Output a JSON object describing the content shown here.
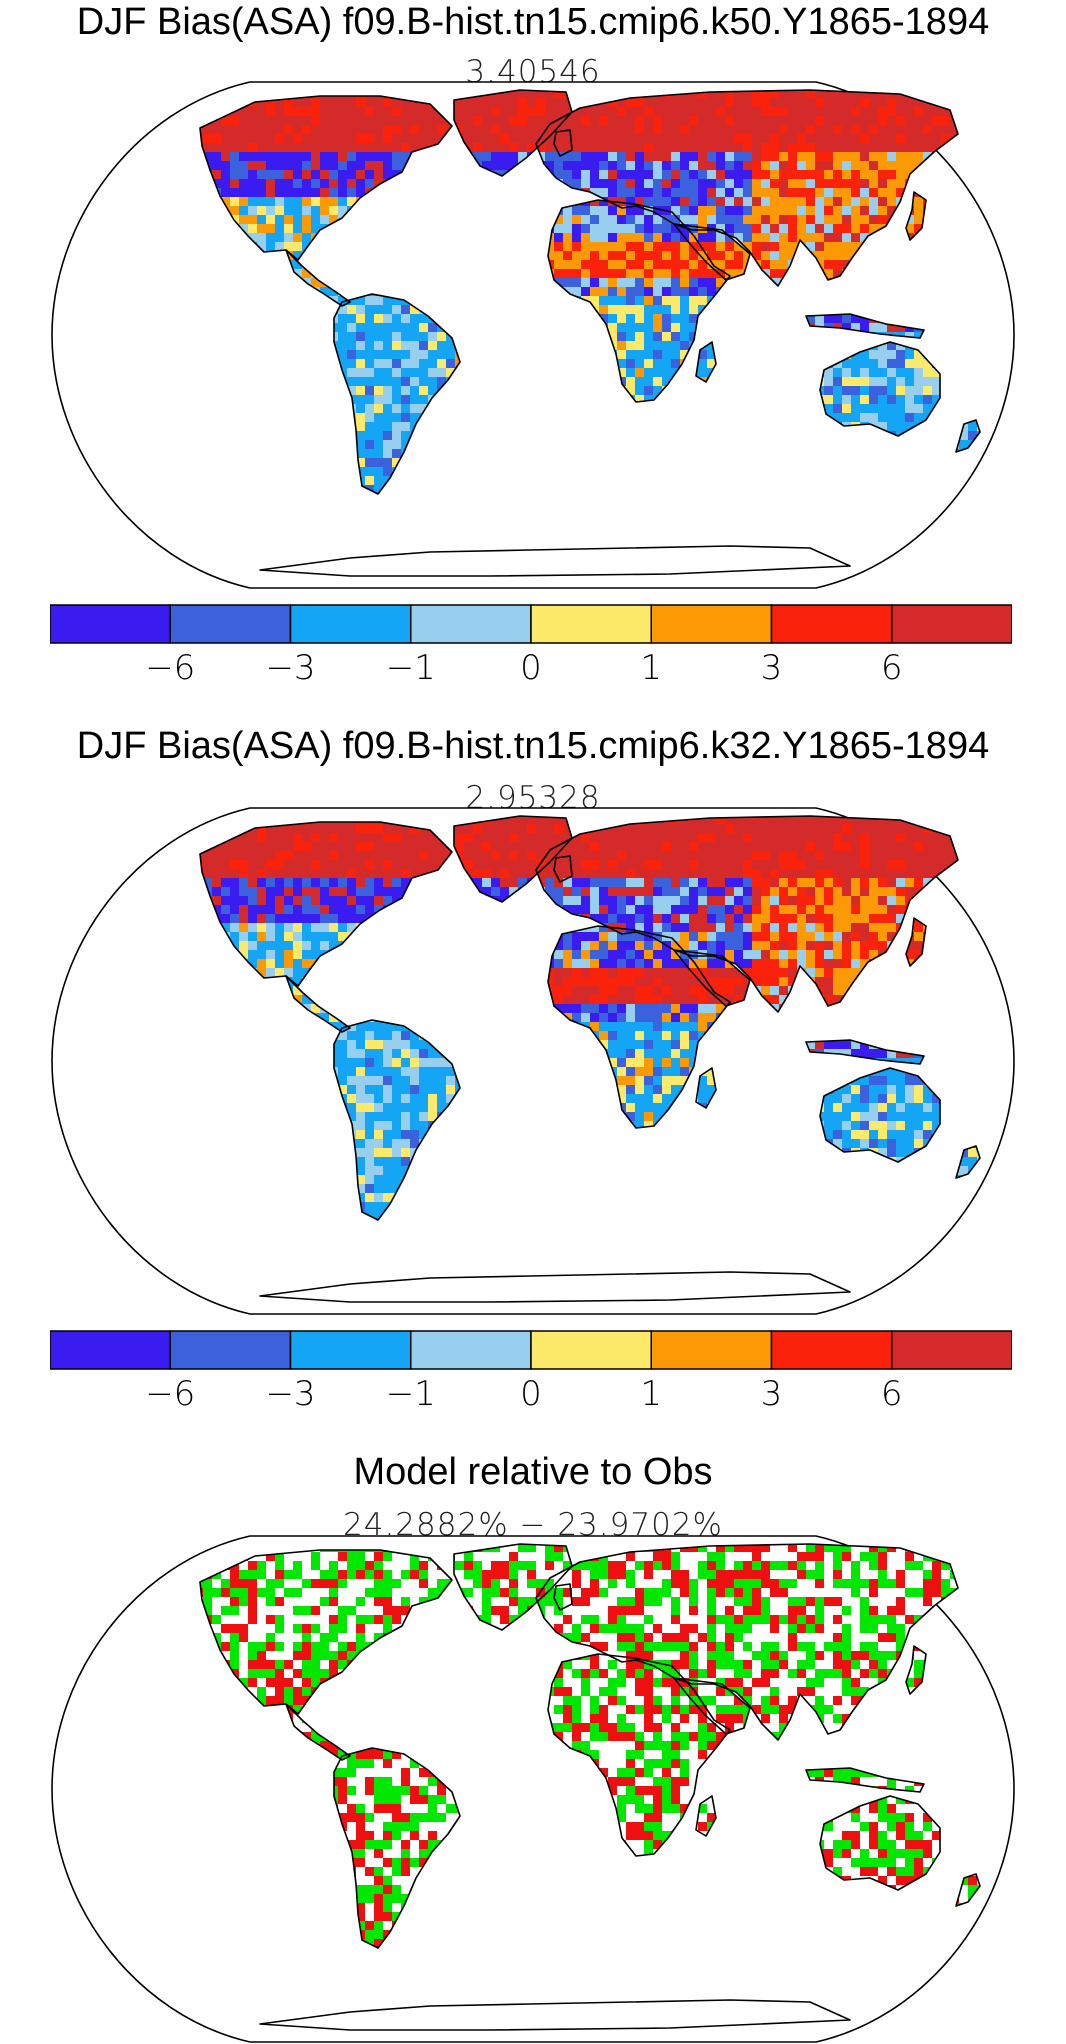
{
  "panels": [
    {
      "title": "DJF Bias(ASA) f09.B-hist.tn15.cmip6.k50.Y1865-1894",
      "value": "3.40546",
      "colorbar": {
        "colors": [
          "#3a1bf0",
          "#3b62dc",
          "#14a5f5",
          "#98cfee",
          "#fde96a",
          "#fb9a05",
          "#fb220c",
          "#d42a2a"
        ],
        "labels": [
          "−6",
          "−3",
          "−1",
          "0",
          "1",
          "3",
          "6"
        ]
      }
    },
    {
      "title": "DJF Bias(ASA) f09.B-hist.tn15.cmip6.k32.Y1865-1894",
      "value": "2.95328",
      "colorbar": {
        "colors": [
          "#3a1bf0",
          "#3b62dc",
          "#14a5f5",
          "#98cfee",
          "#fde96a",
          "#fb9a05",
          "#fb220c",
          "#d42a2a"
        ],
        "labels": [
          "−6",
          "−3",
          "−1",
          "0",
          "1",
          "3",
          "6"
        ]
      }
    },
    {
      "title": "Model relative to Obs",
      "value": "24.2882% − 23.9702%",
      "colors": {
        "better": "#00e800",
        "worse": "#ee1010"
      }
    }
  ]
}
